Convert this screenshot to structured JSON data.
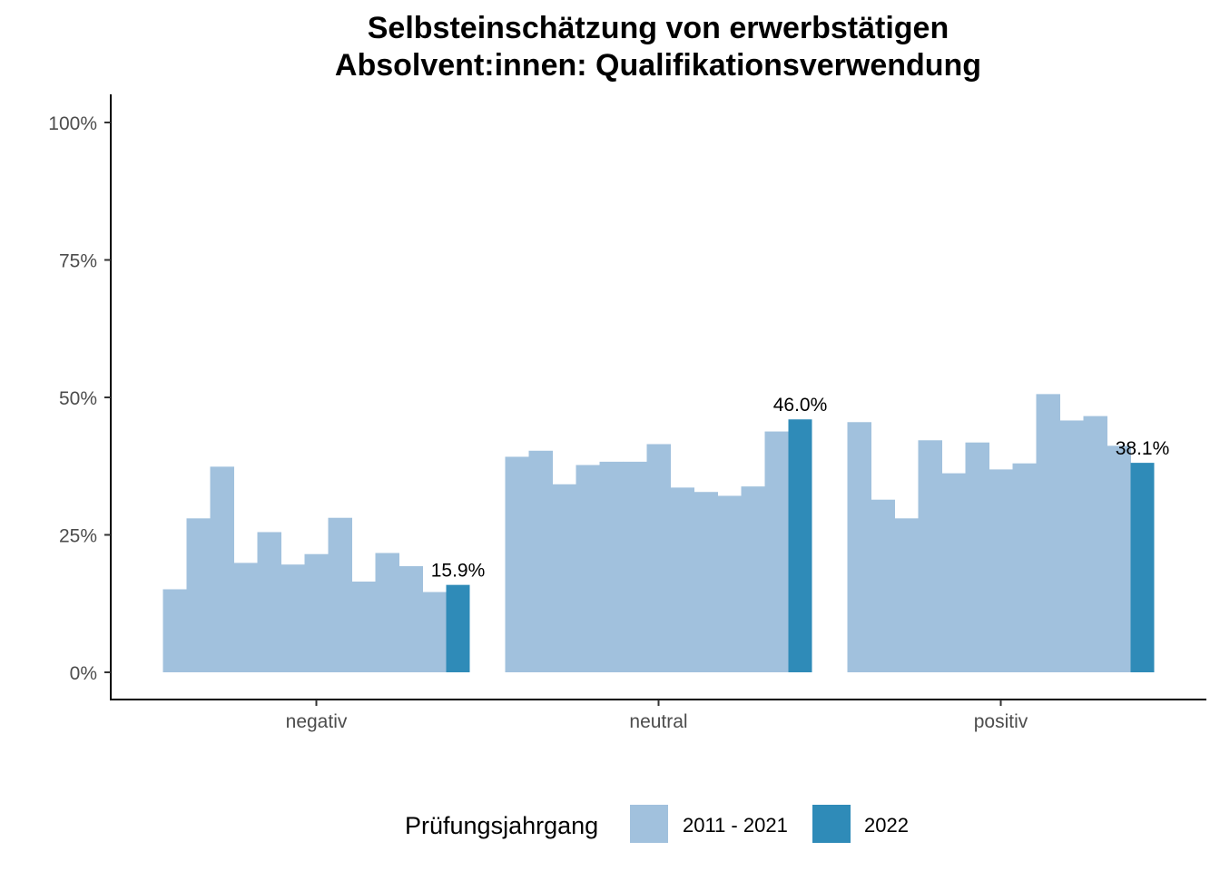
{
  "chart_data": {
    "type": "bar",
    "title_lines": [
      "Selbsteinschätzung von erwerbstätigen",
      "Absolvent:innen: Qualifikationsverwendung"
    ],
    "xlabel": "",
    "ylabel": "",
    "categories": [
      "negativ",
      "neutral",
      "positiv"
    ],
    "ylim": [
      0,
      1.05
    ],
    "y_ticks": [
      0,
      0.25,
      0.5,
      0.75,
      1.0
    ],
    "y_tick_labels": [
      "0%",
      "25%",
      "50%",
      "75%",
      "100%"
    ],
    "grid": false,
    "legend_position": "bottom",
    "legend": {
      "title": "Prüfungsjahrgang",
      "entries": [
        {
          "label": "2011 - 2021",
          "color": "#a1c1dd"
        },
        {
          "label": "2022",
          "color": "#2f8bb8"
        }
      ]
    },
    "series": [
      {
        "years": "2011 - 2021",
        "color": "#a1c1dd",
        "values": [
          [
            0.151,
            0.28,
            0.374,
            0.199,
            0.255,
            0.196,
            0.215,
            0.281,
            0.165,
            0.217,
            0.193,
            0.146
          ],
          [
            0.392,
            0.403,
            0.342,
            0.377,
            0.383,
            0.383,
            0.415,
            0.336,
            0.328,
            0.321,
            0.338,
            0.438
          ],
          [
            0.455,
            0.314,
            0.28,
            0.422,
            0.362,
            0.418,
            0.369,
            0.38,
            0.506,
            0.458,
            0.466,
            0.412
          ]
        ]
      },
      {
        "years": "2022",
        "color": "#2f8bb8",
        "values": [
          0.159,
          0.46,
          0.381
        ],
        "data_labels": [
          "15.9%",
          "46.0%",
          "38.1%"
        ]
      }
    ]
  }
}
